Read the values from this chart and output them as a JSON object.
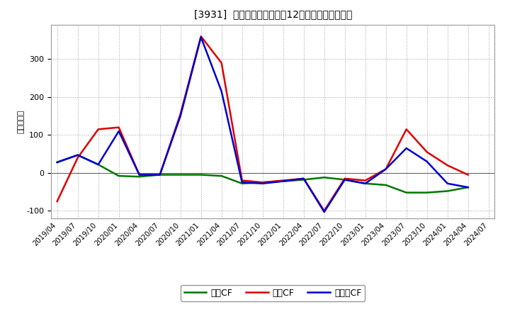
{
  "title": "[3931]  キャッシュフローの12か月移動合計の推移",
  "ylabel": "（百万円）",
  "background_color": "#ffffff",
  "plot_bg_color": "#ffffff",
  "grid_color": "#999999",
  "x_labels": [
    "2019/04",
    "2019/07",
    "2019/10",
    "2020/01",
    "2020/04",
    "2020/07",
    "2020/10",
    "2021/01",
    "2021/04",
    "2021/07",
    "2021/10",
    "2022/01",
    "2022/04",
    "2022/07",
    "2022/10",
    "2023/01",
    "2023/04",
    "2023/07",
    "2023/10",
    "2024/01",
    "2024/04",
    "2024/07"
  ],
  "operating_cf": [
    -75,
    40,
    115,
    120,
    -5,
    -5,
    155,
    360,
    290,
    -20,
    -25,
    -20,
    -15,
    -100,
    -15,
    -20,
    10,
    115,
    55,
    20,
    -5,
    null
  ],
  "investing_cf": [
    28,
    47,
    22,
    -8,
    -10,
    -5,
    -5,
    -5,
    -8,
    -28,
    -25,
    -22,
    -18,
    -12,
    -18,
    -28,
    -32,
    -52,
    -52,
    -48,
    -38,
    null
  ],
  "free_cf": [
    28,
    47,
    22,
    110,
    -5,
    -5,
    150,
    358,
    215,
    -25,
    -28,
    -22,
    -15,
    -103,
    -18,
    -28,
    10,
    65,
    30,
    -28,
    -38,
    null
  ],
  "ylim": [
    -120,
    390
  ],
  "yticks": [
    -100,
    0,
    100,
    200,
    300
  ],
  "line_colors": {
    "operating": "#dd0000",
    "investing": "#007700",
    "free": "#0000cc"
  },
  "legend_labels": {
    "operating": "営業CF",
    "investing": "投資CF",
    "free": "フリーCF"
  }
}
